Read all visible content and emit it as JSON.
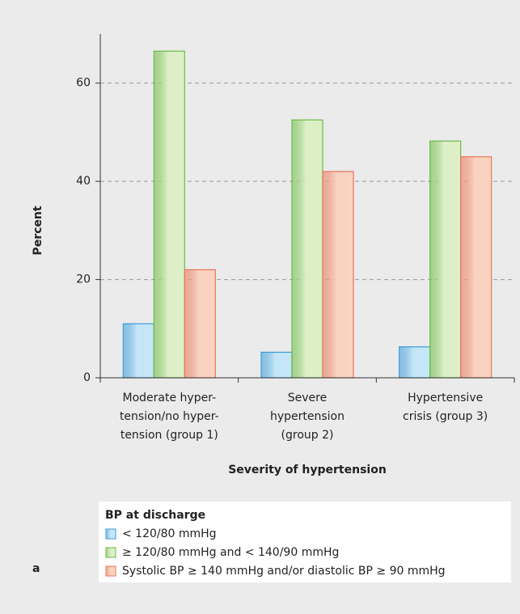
{
  "chart_data": {
    "type": "bar",
    "panel_label": "a",
    "xlabel": "Severity of hypertension",
    "ylabel": "Percent",
    "categories": [
      [
        "Moderate hyper-",
        "tension/no hyper-",
        "tension (group 1)"
      ],
      [
        "Severe",
        "hypertension",
        "(group 2)"
      ],
      [
        "Hypertensive",
        "crisis (group 3)"
      ]
    ],
    "legend_title": "BP at discharge",
    "series": [
      {
        "name": "< 120/80 mmHg",
        "color": "#3b9bd8",
        "fill": "#c4e6f7",
        "values": [
          11,
          5.2,
          6.3
        ]
      },
      {
        "name": "≥ 120/80 mmHg and < 140/90 mmHg",
        "color": "#6cbb45",
        "fill": "#dcefc6",
        "values": [
          66.5,
          52.5,
          48.2
        ]
      },
      {
        "name": "Systolic BP ≥ 140 mmHg and/or diastolic BP ≥ 90 mmHg",
        "color": "#e8765c",
        "fill": "#fad2c0",
        "values": [
          22,
          42,
          45
        ]
      }
    ],
    "ylim": [
      0,
      70
    ],
    "yticks": [
      0,
      20,
      40,
      60
    ],
    "grid": true
  }
}
